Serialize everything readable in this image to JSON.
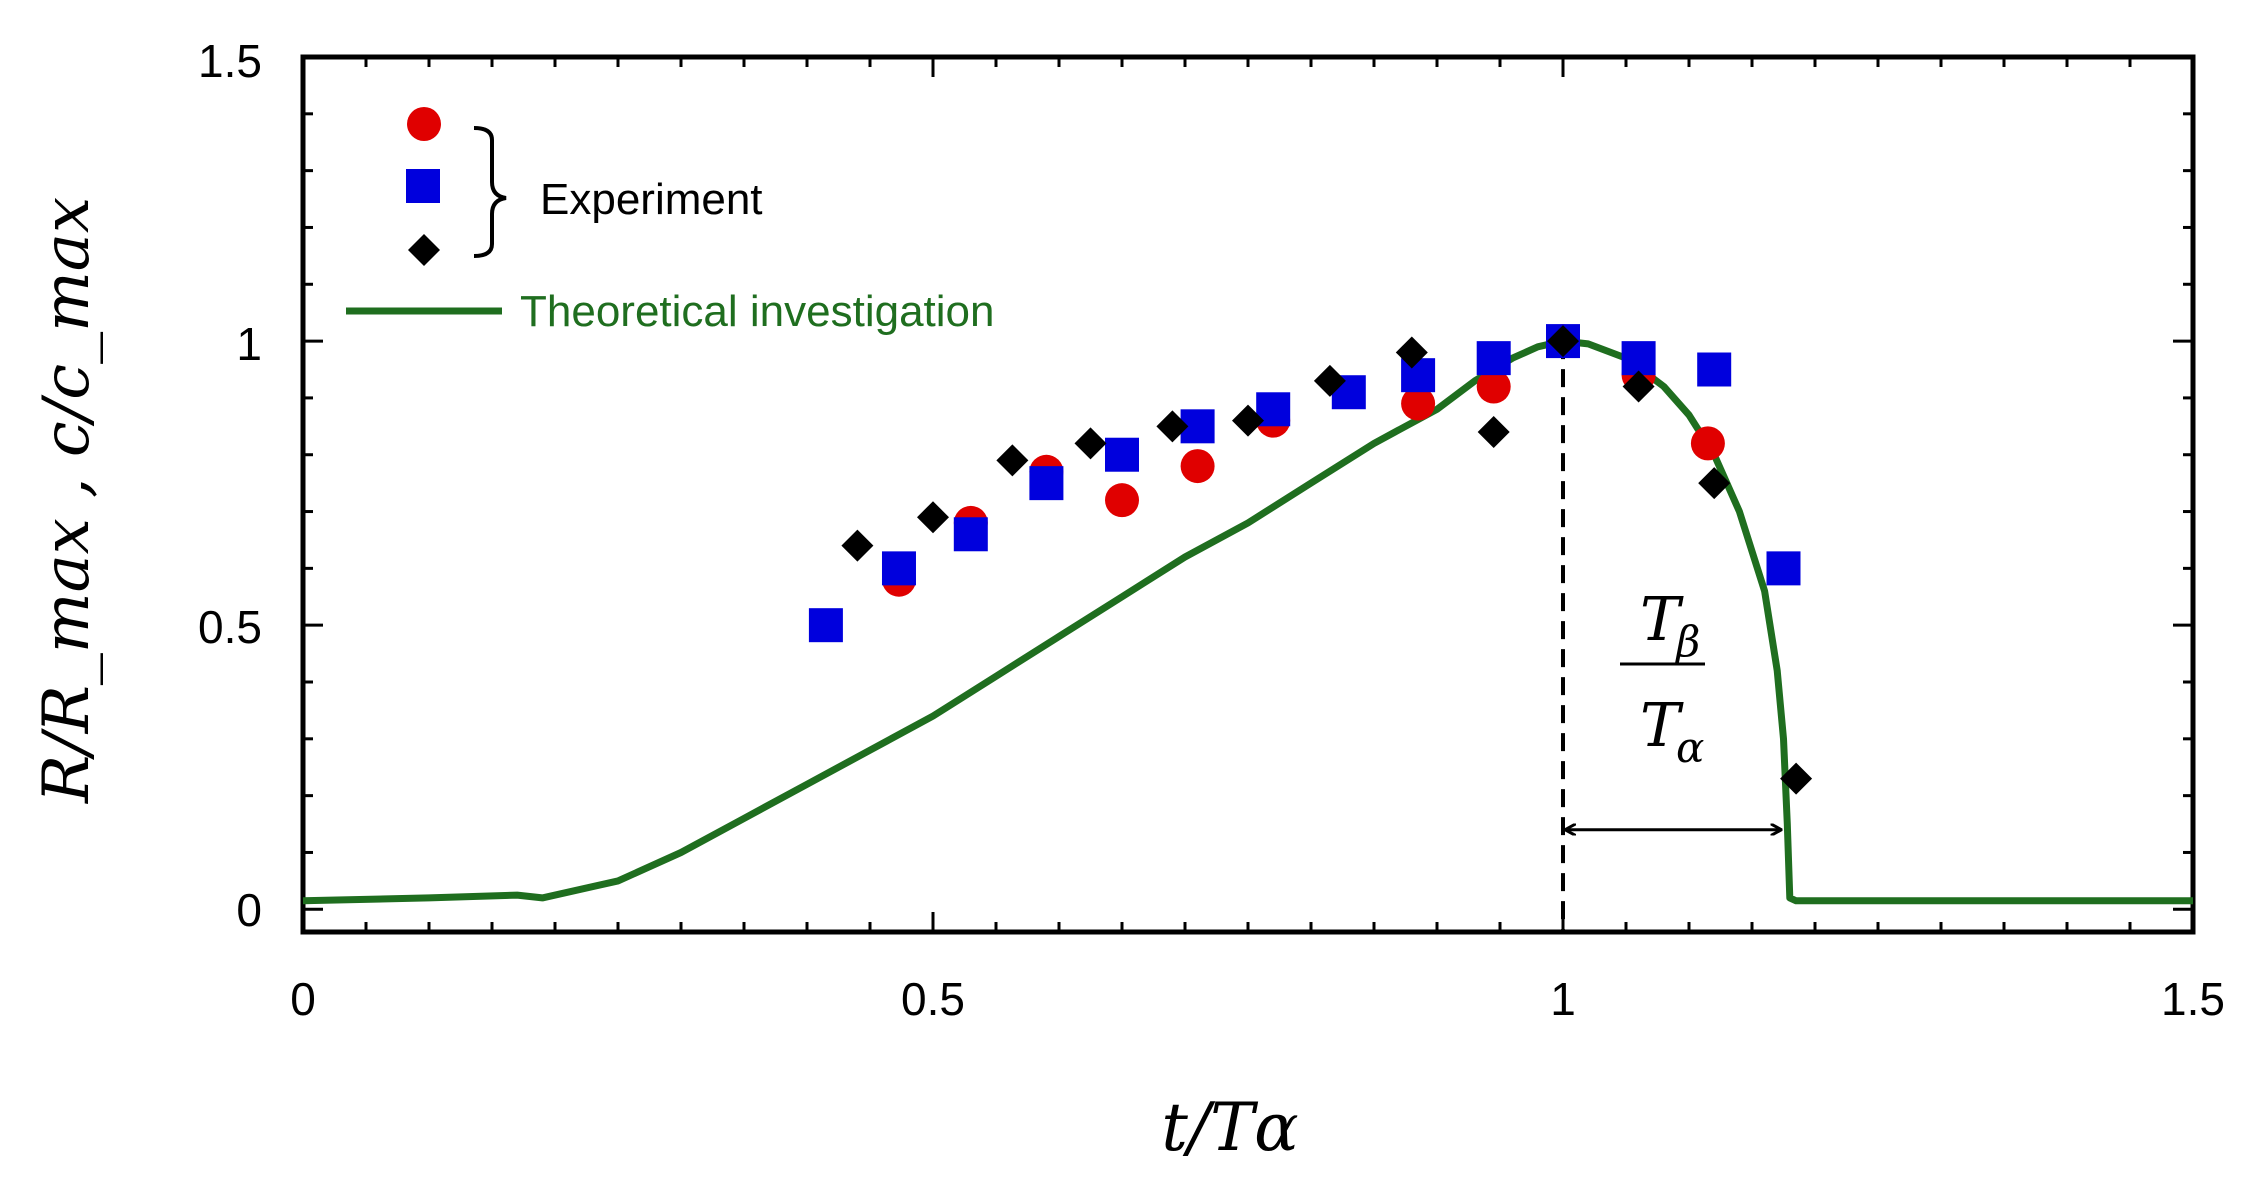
{
  "chart_data": {
    "type": "scatter",
    "title": "",
    "xlabel": "t/Tα",
    "ylabel": "R/R_max ,  c/c_max",
    "xlim": [
      0,
      1.5
    ],
    "ylim": [
      -0.04,
      1.5
    ],
    "x_ticks": [
      "0",
      "0.5",
      "1",
      "1.5"
    ],
    "y_ticks": [
      "0",
      "0.5",
      "1",
      "1.5"
    ],
    "x_tick_values": [
      0,
      0.5,
      1,
      1.5
    ],
    "y_tick_values": [
      0,
      0.5,
      1,
      1.5
    ],
    "legend": {
      "experiment_label": "Experiment",
      "theory_label": "Theoretical investigation",
      "placement": "top-left"
    },
    "colors": {
      "circles": "#e00000",
      "squares": "#0000dd",
      "diamonds": "#000000",
      "theory": "#1f6e1f",
      "theory_label": "#1f6e1f"
    },
    "series": [
      {
        "name": "Experiment (circles)",
        "marker": "circle",
        "x": [
          0.473,
          0.53,
          0.59,
          0.65,
          0.71,
          0.77,
          0.885,
          0.945,
          1.0,
          1.06,
          1.115
        ],
        "y": [
          0.58,
          0.68,
          0.77,
          0.72,
          0.78,
          0.86,
          0.89,
          0.92,
          1.0,
          0.94,
          0.82
        ]
      },
      {
        "name": "Experiment (squares)",
        "marker": "square",
        "x": [
          0.415,
          0.473,
          0.53,
          0.59,
          0.65,
          0.71,
          0.77,
          0.83,
          0.885,
          0.945,
          1.0,
          1.06,
          1.12,
          1.175
        ],
        "y": [
          0.5,
          0.6,
          0.66,
          0.75,
          0.8,
          0.85,
          0.88,
          0.91,
          0.94,
          0.97,
          1.0,
          0.97,
          0.95,
          0.6
        ]
      },
      {
        "name": "Experiment (diamonds)",
        "marker": "diamond",
        "x": [
          0.44,
          0.5,
          0.563,
          0.625,
          0.69,
          0.75,
          0.815,
          0.88,
          0.945,
          1.0,
          1.06,
          1.12,
          1.185
        ],
        "y": [
          0.64,
          0.69,
          0.79,
          0.82,
          0.85,
          0.86,
          0.93,
          0.98,
          0.84,
          1.0,
          0.92,
          0.75,
          0.23
        ]
      },
      {
        "name": "Theoretical investigation",
        "marker": "line",
        "x": [
          0,
          0.1,
          0.17,
          0.19,
          0.25,
          0.3,
          0.35,
          0.4,
          0.45,
          0.5,
          0.55,
          0.6,
          0.65,
          0.7,
          0.75,
          0.8,
          0.85,
          0.9,
          0.93,
          0.96,
          0.98,
          1.0,
          1.02,
          1.05,
          1.08,
          1.1,
          1.12,
          1.14,
          1.16,
          1.17,
          1.175,
          1.178,
          1.18,
          1.185,
          1.2,
          1.3,
          1.4,
          1.5
        ],
        "y": [
          0.015,
          0.02,
          0.025,
          0.02,
          0.05,
          0.1,
          0.16,
          0.22,
          0.28,
          0.34,
          0.41,
          0.48,
          0.55,
          0.62,
          0.68,
          0.75,
          0.82,
          0.88,
          0.93,
          0.97,
          0.99,
          1.0,
          0.995,
          0.97,
          0.92,
          0.87,
          0.8,
          0.7,
          0.56,
          0.42,
          0.3,
          0.15,
          0.02,
          0.015,
          0.015,
          0.015,
          0.015,
          0.015
        ]
      }
    ],
    "annotations": {
      "dashed_line_x": 1.0,
      "arrow": {
        "from_x": 1.0,
        "to_x": 1.175,
        "y": 0.14
      },
      "fraction": {
        "numerator": "T",
        "numerator_sub": "β",
        "denominator": "T",
        "denominator_sub": "α"
      }
    }
  }
}
